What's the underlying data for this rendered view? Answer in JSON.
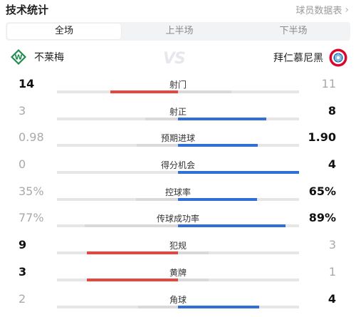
{
  "header": {
    "title": "技术统计",
    "player_stats_link": "球员数据表"
  },
  "tabs": [
    {
      "label": "全场",
      "active": true
    },
    {
      "label": "上半场",
      "active": false
    },
    {
      "label": "下半场",
      "active": false
    }
  ],
  "teams": {
    "home": {
      "name": "不莱梅",
      "color": "#e8453c"
    },
    "away": {
      "name": "拜仁慕尼黑",
      "color": "#2f6fd6"
    },
    "vs": "VS"
  },
  "colors": {
    "track": "#e6e6e6",
    "lead_text": "#111111",
    "trail_text": "#a9a9a9"
  },
  "stats": [
    {
      "label": "射门",
      "home": "14",
      "away": "11",
      "home_share": 0.56,
      "away_share": 0.44,
      "leader": "home"
    },
    {
      "label": "射正",
      "home": "3",
      "away": "8",
      "home_share": 0.27,
      "away_share": 0.73,
      "leader": "away"
    },
    {
      "label": "预期进球",
      "home": "0.98",
      "away": "1.90",
      "home_share": 0.34,
      "away_share": 0.66,
      "leader": "away"
    },
    {
      "label": "得分机会",
      "home": "0",
      "away": "4",
      "home_share": 0.0,
      "away_share": 1.0,
      "leader": "away"
    },
    {
      "label": "控球率",
      "home": "35%",
      "away": "65%",
      "home_share": 0.35,
      "away_share": 0.65,
      "leader": "away"
    },
    {
      "label": "传球成功率",
      "home": "77%",
      "away": "89%",
      "home_share": 0.77,
      "away_share": 0.89,
      "leader": "away"
    },
    {
      "label": "犯规",
      "home": "9",
      "away": "3",
      "home_share": 0.75,
      "away_share": 0.25,
      "leader": "home"
    },
    {
      "label": "黄牌",
      "home": "3",
      "away": "1",
      "home_share": 0.75,
      "away_share": 0.25,
      "leader": "home"
    },
    {
      "label": "角球",
      "home": "2",
      "away": "4",
      "home_share": 0.33,
      "away_share": 0.67,
      "leader": "away"
    }
  ]
}
